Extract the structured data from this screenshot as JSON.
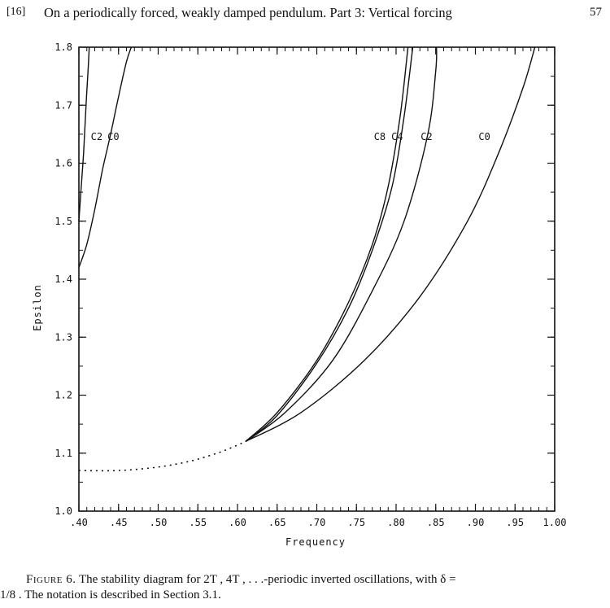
{
  "header": {
    "reference": "[16]",
    "title": "On a periodically forced, weakly damped pendulum. Part 3: Vertical forcing",
    "page_number": "57"
  },
  "caption": {
    "figure_label": "Figure 6.",
    "line1_text": "The stability diagram for  2T , 4T , . . .-periodic inverted oscillations, with  δ =",
    "line2_text": "1/8 . The notation is described in Section 3.1."
  },
  "chart_data": {
    "type": "line",
    "xlabel": "Frequency",
    "ylabel": "Epsilon",
    "xlim": [
      0.4,
      1.0
    ],
    "ylim": [
      1.0,
      1.8
    ],
    "x_ticks": [
      ".40",
      ".45",
      ".50",
      ".55",
      ".60",
      ".65",
      ".70",
      ".75",
      ".80",
      ".85",
      ".90",
      ".95",
      "1.00"
    ],
    "y_ticks": [
      "1.0",
      "1.1",
      "1.2",
      "1.3",
      "1.4",
      "1.5",
      "1.6",
      "1.7",
      "1.8"
    ],
    "grid": false,
    "series": [
      {
        "name": "C2",
        "style": "solid",
        "x": [
          0.4,
          0.403,
          0.406,
          0.409,
          0.412,
          0.413
        ],
        "y": [
          1.5,
          1.56,
          1.62,
          1.7,
          1.77,
          1.8
        ]
      },
      {
        "name": "C0",
        "style": "solid",
        "x": [
          0.4,
          0.41,
          0.42,
          0.43,
          0.44,
          0.45,
          0.46,
          0.466
        ],
        "y": [
          1.42,
          1.46,
          1.52,
          1.59,
          1.65,
          1.715,
          1.775,
          1.8
        ]
      },
      {
        "name": "C8",
        "style": "solid",
        "x": [
          0.61,
          0.65,
          0.7,
          0.74,
          0.77,
          0.79,
          0.805,
          0.815
        ],
        "y": [
          1.12,
          1.17,
          1.26,
          1.36,
          1.46,
          1.56,
          1.68,
          1.8
        ]
      },
      {
        "name": "C4",
        "style": "solid",
        "x": [
          0.61,
          0.65,
          0.7,
          0.74,
          0.77,
          0.795,
          0.81,
          0.821
        ],
        "y": [
          1.12,
          1.165,
          1.255,
          1.35,
          1.45,
          1.56,
          1.68,
          1.8
        ]
      },
      {
        "name": "C2",
        "style": "solid",
        "x": [
          0.61,
          0.66,
          0.72,
          0.77,
          0.81,
          0.84,
          0.85,
          0.851
        ],
        "y": [
          1.12,
          1.17,
          1.26,
          1.38,
          1.5,
          1.65,
          1.76,
          1.8
        ]
      },
      {
        "name": "C0",
        "style": "solid",
        "x": [
          0.61,
          0.68,
          0.76,
          0.83,
          0.89,
          0.93,
          0.96,
          0.975
        ],
        "y": [
          1.12,
          1.17,
          1.26,
          1.37,
          1.5,
          1.62,
          1.73,
          1.8
        ]
      },
      {
        "name": "",
        "style": "dotted",
        "x": [
          0.4,
          0.45,
          0.5,
          0.54,
          0.57,
          0.59,
          0.61
        ],
        "y": [
          1.07,
          1.07,
          1.076,
          1.086,
          1.098,
          1.108,
          1.12
        ]
      }
    ],
    "annotations": [
      {
        "text": "C2",
        "x": 0.415,
        "y": 1.64
      },
      {
        "text": "C0",
        "x": 0.436,
        "y": 1.64
      },
      {
        "text": "C8",
        "x": 0.772,
        "y": 1.64
      },
      {
        "text": "C4",
        "x": 0.794,
        "y": 1.64
      },
      {
        "text": "C2",
        "x": 0.831,
        "y": 1.64
      },
      {
        "text": "C0",
        "x": 0.904,
        "y": 1.64
      }
    ]
  }
}
